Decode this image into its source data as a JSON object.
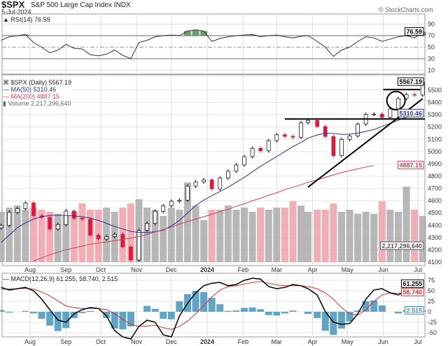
{
  "header": {
    "symbol": "$SPX",
    "name": "S&P 500 Large Cap Index",
    "exchange": "INDX",
    "date": "5-Jul-2024",
    "credit": "© StockCharts.com"
  },
  "colors": {
    "up": "#ffffff",
    "down": "#e0183c",
    "ma50": "#2b2f8f",
    "ma200": "#d0405a",
    "volume_up": "#aaaaaa",
    "volume_down": "#f0a0a8",
    "rsi_fill": "#4f7f4f",
    "macd": "#000000",
    "signal": "#e03030",
    "histogram": "#3a8fb8",
    "annotation": "#000000"
  },
  "chart_data": [
    {
      "type": "line",
      "title": "RSI(14) 76.59",
      "label": "RSI(14)",
      "last": "76.59",
      "ylim": [
        0,
        100
      ],
      "yticks": [
        10,
        30,
        50,
        70,
        90
      ],
      "overbought": 70,
      "oversold": 30,
      "grid": true,
      "dates": [
        "2023-07-07",
        "2023-07-14",
        "2023-07-21",
        "2023-07-28",
        "2023-08-04",
        "2023-08-11",
        "2023-08-18",
        "2023-08-25",
        "2023-09-01",
        "2023-09-08",
        "2023-09-15",
        "2023-09-22",
        "2023-09-29",
        "2023-10-06",
        "2023-10-13",
        "2023-10-20",
        "2023-10-27",
        "2023-11-03",
        "2023-11-10",
        "2023-11-17",
        "2023-11-24",
        "2023-12-01",
        "2023-12-08",
        "2023-12-15",
        "2023-12-22",
        "2023-12-29",
        "2024-01-05",
        "2024-01-12",
        "2024-01-19",
        "2024-01-26",
        "2024-02-02",
        "2024-02-09",
        "2024-02-16",
        "2024-02-23",
        "2024-03-01",
        "2024-03-08",
        "2024-03-15",
        "2024-03-22",
        "2024-03-28",
        "2024-04-05",
        "2024-04-12",
        "2024-04-19",
        "2024-04-26",
        "2024-05-03",
        "2024-05-10",
        "2024-05-17",
        "2024-05-24",
        "2024-05-31",
        "2024-06-07",
        "2024-06-14",
        "2024-06-21",
        "2024-06-28",
        "2024-07-05"
      ],
      "values": [
        62,
        68,
        70,
        72,
        58,
        50,
        40,
        45,
        55,
        48,
        47,
        37,
        35,
        38,
        45,
        36,
        30,
        58,
        62,
        68,
        70,
        71,
        70,
        78,
        80,
        78,
        60,
        65,
        68,
        70,
        71,
        72,
        68,
        70,
        71,
        68,
        66,
        69,
        70,
        60,
        50,
        34,
        45,
        50,
        60,
        68,
        66,
        60,
        64,
        68,
        70,
        66,
        76.59
      ]
    },
    {
      "type": "candlestick",
      "title": "$SPX (Daily) 5567.19",
      "label": "$SPX (Daily)",
      "last": "5567.19",
      "ylim": [
        4050,
        5620
      ],
      "yticks": [
        4100,
        4200,
        4300,
        4400,
        4500,
        4600,
        4700,
        4800,
        4900,
        5000,
        5100,
        5200,
        5300,
        5400,
        5500
      ],
      "grid": true,
      "xticks": [
        "Aug",
        "Sep",
        "Oct",
        "Nov",
        "Dec",
        "2024",
        "Feb",
        "Mar",
        "Apr",
        "May",
        "Jun",
        "Jul"
      ],
      "close": [
        4399,
        4505,
        4536,
        4582,
        4478,
        4464,
        4370,
        4406,
        4516,
        4457,
        4450,
        4320,
        4288,
        4308,
        4327,
        4224,
        4117,
        4358,
        4415,
        4514,
        4559,
        4595,
        4604,
        4719,
        4754,
        4770,
        4697,
        4784,
        4840,
        4891,
        4959,
        5027,
        5006,
        5089,
        5137,
        5124,
        5117,
        5234,
        5254,
        5204,
        5123,
        4967,
        5100,
        5128,
        5223,
        5303,
        5305,
        5278,
        5347,
        5432,
        5465,
        5460,
        5567.19
      ],
      "ma50": {
        "label": "MA(50)",
        "last": "5310.46",
        "values": [
          4260,
          4320,
          4380,
          4420,
          4450,
          4470,
          4480,
          4482,
          4480,
          4476,
          4470,
          4458,
          4440,
          4415,
          4390,
          4370,
          4350,
          4342,
          4340,
          4348,
          4360,
          4395,
          4440,
          4500,
          4560,
          4605,
          4640,
          4675,
          4710,
          4750,
          4790,
          4835,
          4880,
          4920,
          4960,
          5000,
          5040,
          5075,
          5110,
          5135,
          5150,
          5148,
          5140,
          5142,
          5150,
          5165,
          5180,
          5205,
          5230,
          5255,
          5280,
          5295,
          5310.46
        ]
      },
      "ma200": {
        "label": "MA(200)",
        "last": "4887.15",
        "start": "2023-08-04",
        "values": [
          4110,
          4135,
          4160,
          4180,
          4200,
          4215,
          4230,
          4245,
          4255,
          4265,
          4275,
          4285,
          4295,
          4310,
          4325,
          4345,
          4365,
          4385,
          4410,
          4430,
          4450,
          4470,
          4490,
          4510,
          4530,
          4555,
          4575,
          4600,
          4620,
          4645,
          4665,
          4690,
          4710,
          4730,
          4750,
          4770,
          4790,
          4810,
          4830,
          4845,
          4860,
          4875,
          4887.15
        ]
      },
      "volume": {
        "label": "Volume",
        "last": "2,217,296,640",
        "values_billions": [
          2.4,
          2.6,
          2.7,
          2.5,
          2.6,
          2.5,
          2.4,
          2.3,
          2.2,
          2.4,
          2.8,
          2.5,
          2.5,
          2.6,
          2.4,
          2.6,
          2.8,
          3.0,
          2.6,
          2.5,
          2.2,
          2.6,
          2.5,
          3.8,
          2.7,
          2.0,
          2.5,
          2.5,
          2.7,
          2.5,
          2.6,
          2.4,
          2.6,
          2.5,
          2.6,
          2.6,
          2.9,
          2.7,
          2.4,
          2.5,
          2.5,
          2.8,
          2.4,
          2.5,
          2.3,
          2.4,
          2.3,
          2.9,
          2.5,
          2.4,
          3.6,
          2.5,
          2.2
        ]
      },
      "annotations": [
        {
          "type": "horizontal",
          "price": 5265,
          "from": "2024-03-08"
        },
        {
          "type": "horizontal",
          "price": 5505,
          "from": "2024-06-01",
          "to": "2024-07-03"
        },
        {
          "type": "trendline",
          "from": [
            "2024-03-28",
            4710
          ],
          "to": [
            "2024-07-05",
            5430
          ]
        },
        {
          "type": "circle",
          "date": "2024-06-12",
          "price": 5415
        }
      ]
    },
    {
      "type": "line",
      "title": "MACD(12,26,9) 61.255, 58.740, 2.515",
      "label": "MACD(12,26,9)",
      "macd_last": "61.255",
      "signal_last": "58.740",
      "hist_last": "2.515",
      "ylim": [
        -65,
        90
      ],
      "yticks": [
        -50,
        -25,
        0,
        25,
        50,
        75
      ],
      "grid": true,
      "macd": [
        58,
        52,
        55,
        58,
        50,
        30,
        5,
        -20,
        -25,
        -5,
        5,
        10,
        8,
        -10,
        -45,
        -60,
        -65,
        -35,
        -20,
        -25,
        -55,
        -60,
        -10,
        20,
        45,
        62,
        68,
        70,
        62,
        65,
        75,
        80,
        78,
        60,
        55,
        58,
        65,
        62,
        55,
        40,
        0,
        -25,
        -30,
        -28,
        -5,
        30,
        52,
        55,
        45,
        40,
        50,
        62,
        61.255
      ],
      "signal": [
        54,
        54,
        55,
        56,
        54,
        47,
        38,
        26,
        14,
        10,
        8,
        8,
        8,
        5,
        -5,
        -18,
        -30,
        -35,
        -34,
        -32,
        -38,
        -42,
        -35,
        -22,
        -5,
        15,
        35,
        52,
        60,
        62,
        66,
        70,
        72,
        68,
        64,
        62,
        62,
        62,
        60,
        55,
        45,
        30,
        10,
        -5,
        -8,
        5,
        25,
        40,
        45,
        44,
        46,
        52,
        58.74
      ]
    }
  ]
}
